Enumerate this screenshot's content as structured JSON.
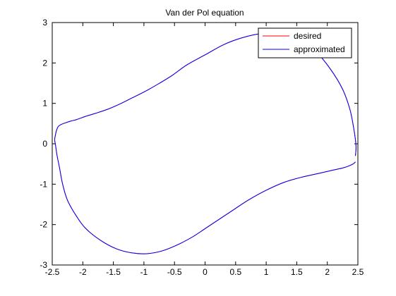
{
  "chart_data": {
    "type": "line",
    "title": "Van der Pol equation",
    "xlabel": "",
    "ylabel": "",
    "xlim": [
      -2.5,
      2.5
    ],
    "ylim": [
      -3,
      3
    ],
    "xticks": [
      -2.5,
      -2,
      -1.5,
      -1,
      -0.5,
      0,
      0.5,
      1,
      1.5,
      2,
      2.5
    ],
    "xtick_labels": [
      "-2.5",
      "-2",
      "-1.5",
      "-1",
      "-0.5",
      "0",
      "0.5",
      "1",
      "1.5",
      "2",
      "2.5"
    ],
    "yticks": [
      -3,
      -2,
      -1,
      0,
      1,
      2,
      3
    ],
    "ytick_labels": [
      "-3",
      "-2",
      "-1",
      "0",
      "1",
      "2",
      "3"
    ],
    "grid": false,
    "legend_position": "top-right",
    "series": [
      {
        "name": "desired",
        "color": "#ff0000",
        "x": [
          2.46,
          2.42,
          2.35,
          2.25,
          2.1,
          1.9,
          1.6,
          1.3,
          1.0,
          0.7,
          0.45,
          0.2,
          0.0,
          -0.2,
          -0.45,
          -0.7,
          -0.95,
          -1.2,
          -1.45,
          -1.7,
          -1.95,
          -2.1,
          -2.25,
          -2.33,
          -2.38,
          -2.42,
          -2.44,
          -2.45,
          -2.46,
          -2.45,
          -2.43,
          -2.4,
          -2.35,
          -2.28,
          -2.2,
          -2.1,
          -1.95,
          -1.8,
          -1.6,
          -1.4,
          -1.2,
          -1.0,
          -0.8,
          -0.55,
          -0.3,
          0.0,
          0.3,
          0.6,
          0.9,
          1.2,
          1.5,
          1.8,
          2.05,
          2.25,
          2.37,
          2.43,
          2.46,
          2.47,
          2.46
        ],
        "y": [
          -0.45,
          -0.5,
          -0.55,
          -0.6,
          -0.65,
          -0.72,
          -0.82,
          -0.95,
          -1.15,
          -1.4,
          -1.65,
          -1.9,
          -2.1,
          -2.3,
          -2.5,
          -2.65,
          -2.72,
          -2.7,
          -2.6,
          -2.4,
          -2.1,
          -1.8,
          -1.4,
          -1.0,
          -0.6,
          -0.3,
          -0.1,
          0.0,
          0.1,
          0.2,
          0.33,
          0.43,
          0.48,
          0.52,
          0.56,
          0.6,
          0.68,
          0.75,
          0.85,
          0.98,
          1.13,
          1.28,
          1.45,
          1.68,
          1.95,
          2.2,
          2.45,
          2.62,
          2.72,
          2.72,
          2.6,
          2.3,
          1.85,
          1.35,
          0.85,
          0.4,
          0.1,
          -0.1,
          -0.3
        ]
      },
      {
        "name": "approximated",
        "color": "#0000ff",
        "x": [
          2.46,
          2.42,
          2.35,
          2.25,
          2.1,
          1.9,
          1.6,
          1.3,
          1.0,
          0.7,
          0.45,
          0.2,
          0.0,
          -0.2,
          -0.45,
          -0.7,
          -0.95,
          -1.2,
          -1.45,
          -1.7,
          -1.95,
          -2.1,
          -2.25,
          -2.33,
          -2.38,
          -2.42,
          -2.44,
          -2.45,
          -2.46,
          -2.45,
          -2.43,
          -2.4,
          -2.35,
          -2.28,
          -2.2,
          -2.1,
          -1.95,
          -1.8,
          -1.6,
          -1.4,
          -1.2,
          -1.0,
          -0.8,
          -0.55,
          -0.3,
          0.0,
          0.3,
          0.6,
          0.9,
          1.2,
          1.5,
          1.8,
          2.05,
          2.25,
          2.37,
          2.43,
          2.46,
          2.47,
          2.46
        ],
        "y": [
          -0.45,
          -0.5,
          -0.55,
          -0.6,
          -0.65,
          -0.72,
          -0.82,
          -0.95,
          -1.15,
          -1.4,
          -1.65,
          -1.9,
          -2.1,
          -2.3,
          -2.5,
          -2.65,
          -2.72,
          -2.7,
          -2.6,
          -2.4,
          -2.1,
          -1.8,
          -1.4,
          -1.0,
          -0.6,
          -0.3,
          -0.1,
          0.0,
          0.1,
          0.2,
          0.33,
          0.43,
          0.48,
          0.52,
          0.56,
          0.6,
          0.68,
          0.75,
          0.85,
          0.98,
          1.13,
          1.28,
          1.45,
          1.68,
          1.95,
          2.2,
          2.45,
          2.62,
          2.72,
          2.72,
          2.6,
          2.3,
          1.85,
          1.35,
          0.85,
          0.4,
          0.1,
          -0.1,
          -0.3
        ]
      }
    ]
  }
}
